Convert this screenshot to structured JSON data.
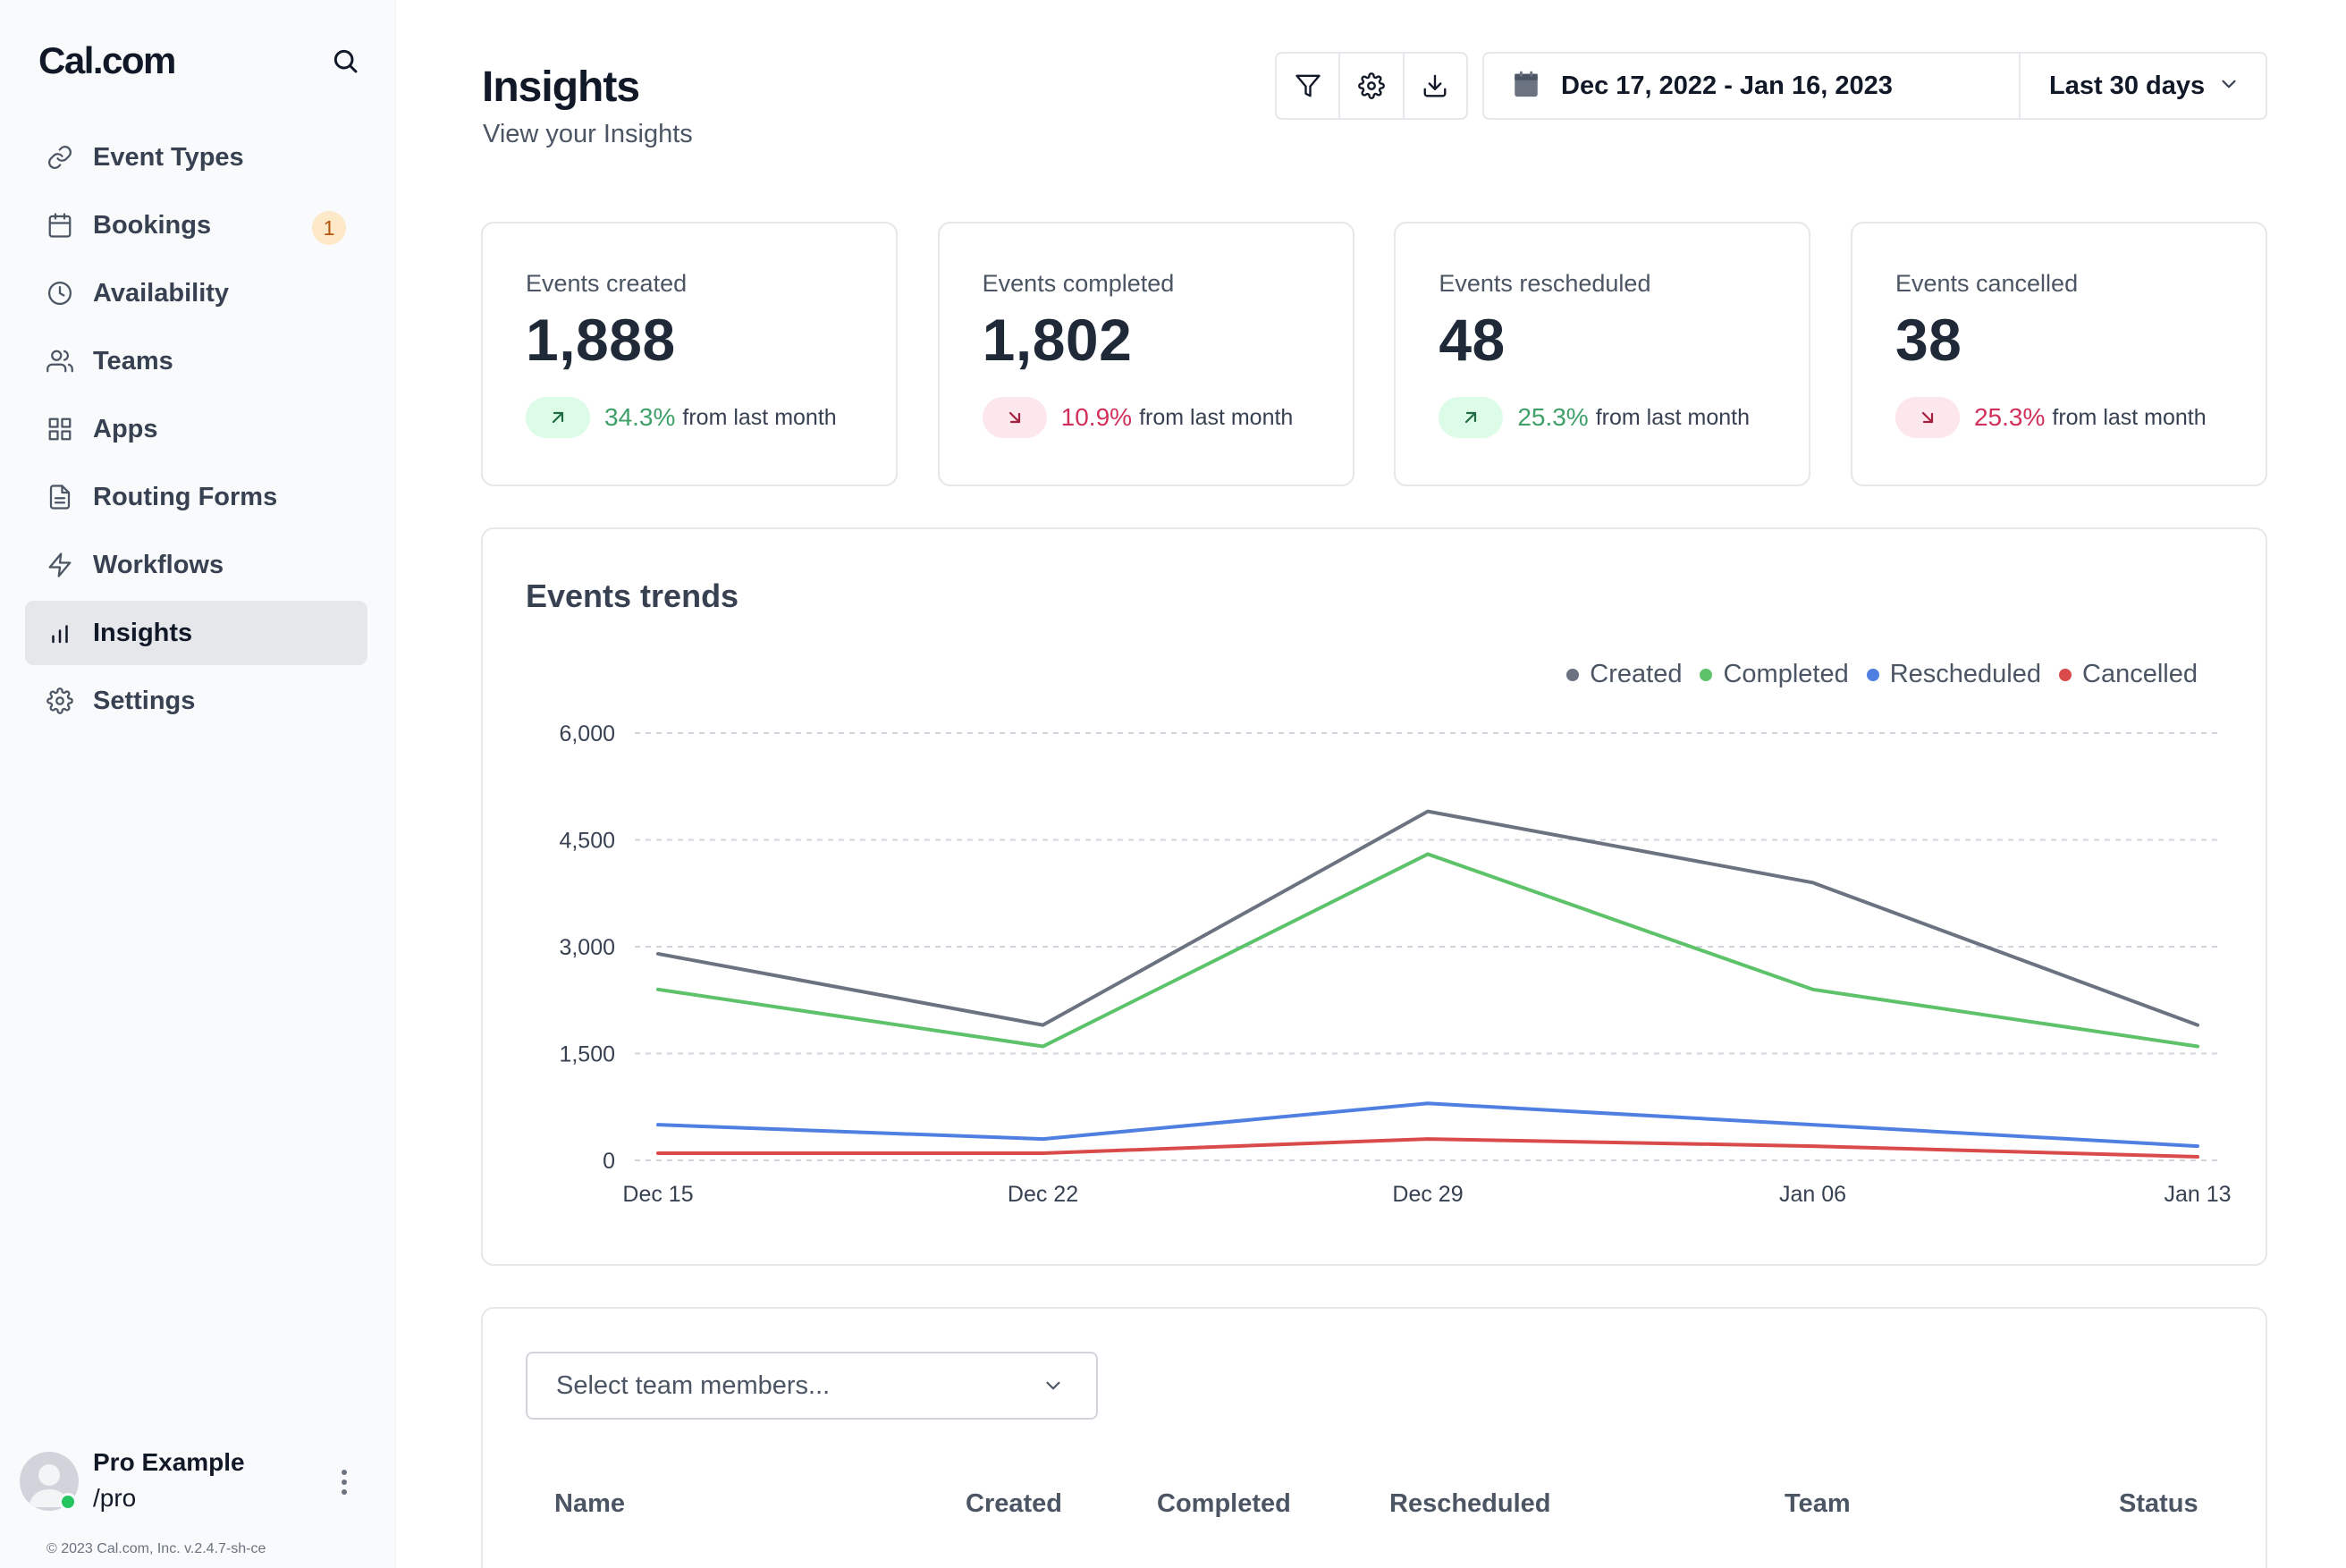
{
  "brand": {
    "logo": "Cal.com"
  },
  "sidebar": {
    "items": [
      {
        "label": "Event Types",
        "icon": "link-icon"
      },
      {
        "label": "Bookings",
        "icon": "calendar-icon",
        "badge": "1"
      },
      {
        "label": "Availability",
        "icon": "clock-icon"
      },
      {
        "label": "Teams",
        "icon": "users-icon"
      },
      {
        "label": "Apps",
        "icon": "grid-icon"
      },
      {
        "label": "Routing Forms",
        "icon": "file-icon"
      },
      {
        "label": "Workflows",
        "icon": "zap-icon"
      },
      {
        "label": "Insights",
        "icon": "bar-chart-icon",
        "active": true
      },
      {
        "label": "Settings",
        "icon": "gear-icon"
      }
    ]
  },
  "user": {
    "name": "Pro Example",
    "handle": "/pro"
  },
  "footer": {
    "copyright": "© 2023 Cal.com, Inc. v.2.4.7-sh-ce"
  },
  "header": {
    "title": "Insights",
    "subtitle": "View your Insights"
  },
  "toolbar": {
    "date_range": "Dec 17, 2022 - Jan 16, 2023",
    "preset": "Last 30 days"
  },
  "stats": [
    {
      "label": "Events created",
      "value": "1,888",
      "change": "34.3%",
      "direction": "up",
      "suffix": "from last month"
    },
    {
      "label": "Events completed",
      "value": "1,802",
      "change": "10.9%",
      "direction": "down",
      "suffix": "from last month"
    },
    {
      "label": "Events rescheduled",
      "value": "48",
      "change": "25.3%",
      "direction": "up",
      "suffix": "from last month"
    },
    {
      "label": "Events cancelled",
      "value": "38",
      "change": "25.3%",
      "direction": "down",
      "suffix": "from last month"
    }
  ],
  "chart_data": {
    "type": "line",
    "title": "Events trends",
    "categories": [
      "Dec 15",
      "Dec 22",
      "Dec 29",
      "Jan 06",
      "Jan 13"
    ],
    "y_ticks": [
      "0",
      "1,500",
      "3,000",
      "4,500",
      "6,000"
    ],
    "ylim": [
      0,
      6000
    ],
    "grid": true,
    "legend_position": "top-right",
    "series": [
      {
        "name": "Created",
        "color": "#6b7280",
        "values": [
          2900,
          1900,
          4900,
          3900,
          1900
        ]
      },
      {
        "name": "Completed",
        "color": "#5ec26a",
        "values": [
          2400,
          1600,
          4300,
          2400,
          1600
        ]
      },
      {
        "name": "Rescheduled",
        "color": "#4f7fe0",
        "values": [
          500,
          300,
          800,
          500,
          200
        ]
      },
      {
        "name": "Cancelled",
        "color": "#d94b4b",
        "values": [
          100,
          100,
          300,
          200,
          50
        ]
      }
    ]
  },
  "table": {
    "select_placeholder": "Select team members...",
    "columns": [
      "Name",
      "Created",
      "Completed",
      "Rescheduled",
      "Team",
      "Status"
    ]
  }
}
